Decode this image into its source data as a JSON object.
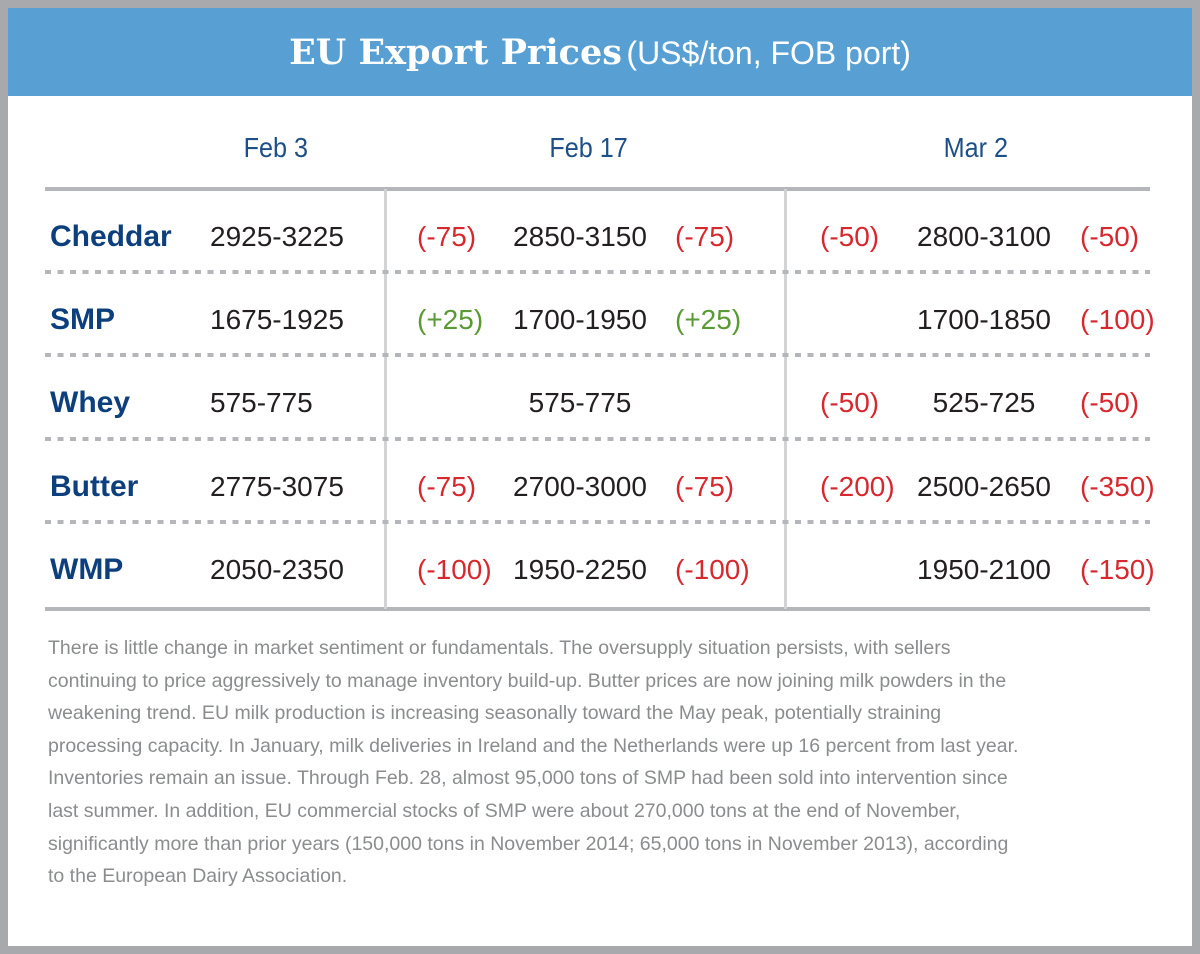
{
  "title": {
    "main": "EU Export Prices",
    "sub": "(US$/ton, FOB port)"
  },
  "columns": [
    "Feb 3",
    "Feb 17",
    "Mar 2"
  ],
  "colors": {
    "banner": "#58a0d4",
    "label": "#0d3f7d",
    "negative": "#d7282f",
    "positive": "#5a9a35"
  },
  "rows": [
    {
      "product": "Cheddar",
      "feb3": "2925-3225",
      "feb17_in": "(-75)",
      "feb17": "2850-3150",
      "feb17_out": "(-75)",
      "mar2_in": "(-50)",
      "mar2": "2800-3100",
      "mar2_out": "(-50)"
    },
    {
      "product": "SMP",
      "feb3": "1675-1925",
      "feb17_in": "(+25)",
      "feb17": "1700-1950",
      "feb17_out": "(+25)",
      "mar2_in": "",
      "mar2": "1700-1850",
      "mar2_out": "(-100)"
    },
    {
      "product": "Whey",
      "feb3": "575-775",
      "feb17_in": "",
      "feb17": "575-775",
      "feb17_out": "",
      "mar2_in": "(-50)",
      "mar2": "525-725",
      "mar2_out": "(-50)"
    },
    {
      "product": "Butter",
      "feb3": "2775-3075",
      "feb17_in": "(-75)",
      "feb17": "2700-3000",
      "feb17_out": "(-75)",
      "mar2_in": "(-200)",
      "mar2": "2500-2650",
      "mar2_out": "(-350)"
    },
    {
      "product": "WMP",
      "feb3": "2050-2350",
      "feb17_in": "(-100)",
      "feb17": "1950-2250",
      "feb17_out": "(-100)",
      "mar2_in": "",
      "mar2": "1950-2100",
      "mar2_out": "(-150)"
    }
  ],
  "commentary": [
    "There is little change in market sentiment or fundamentals. The oversupply situation persists, with sellers",
    "continuing to price aggressively to manage inventory build-up. Butter prices are now joining milk powders in the",
    "weakening trend. EU milk production is increasing seasonally toward the May peak, potentially straining",
    "processing capacity. In January, milk deliveries in Ireland and the Netherlands were up 16 percent from last year.",
    "Inventories remain an issue. Through Feb. 28, almost 95,000 tons of SMP had been sold into intervention since",
    "last summer. In addition, EU commercial stocks of SMP were about 270,000 tons at the end of November,",
    "significantly more than prior years (150,000 tons in November 2014; 65,000 tons in November 2013), according",
    "to the European Dairy Association."
  ]
}
